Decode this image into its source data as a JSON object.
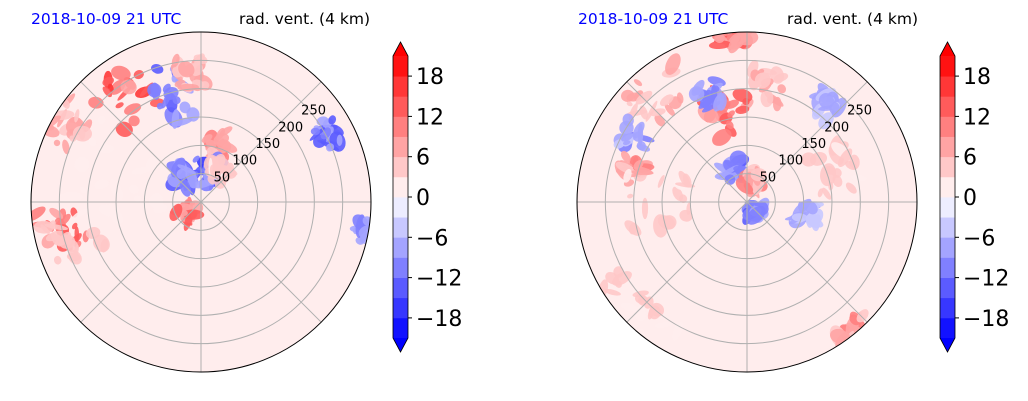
{
  "colors": {
    "title_left": "#0000ff",
    "title_right": "#000000",
    "grid": "#b0b0b0",
    "positive": "#ff0000",
    "negative": "#0000ff",
    "neutral": "#ffffff"
  },
  "chart_data": [
    {
      "type": "heatmap",
      "projection": "polar",
      "title_left": "2018-10-09 21 UTC",
      "title_right": "rad. vent. (4 km)",
      "range_rings": [
        50,
        100,
        150,
        200,
        250
      ],
      "range_ring_labels": [
        "50",
        "100",
        "150",
        "200",
        "250"
      ],
      "max_range": 300,
      "spoke_angles_deg": [
        0,
        45,
        90,
        135,
        180,
        225,
        270,
        315
      ],
      "grid": true,
      "colorbar": {
        "vmin": -21,
        "vmax": 21,
        "step": 3,
        "ticks": [
          -18,
          -12,
          -6,
          0,
          6,
          12,
          18
        ],
        "tick_labels": [
          "−18",
          "−12",
          "−6",
          "0",
          "6",
          "12",
          "18"
        ],
        "extend": "both",
        "cmap": "bwr"
      },
      "features": [
        {
          "az": -35,
          "r": 230,
          "value": 17,
          "spread_az": 12,
          "spread_r": 45
        },
        {
          "az": -15,
          "r": 200,
          "value": -14,
          "spread_az": 10,
          "spread_r": 55
        },
        {
          "az": -5,
          "r": 230,
          "value": 8,
          "spread_az": 8,
          "spread_r": 30
        },
        {
          "az": 15,
          "r": 110,
          "value": 10,
          "spread_az": 10,
          "spread_r": 25
        },
        {
          "az": 5,
          "r": 55,
          "value": -16,
          "spread_az": 30,
          "spread_r": 25
        },
        {
          "az": -40,
          "r": 55,
          "value": -15,
          "spread_az": 20,
          "spread_r": 20
        },
        {
          "az": 30,
          "r": 60,
          "value": 6,
          "spread_az": 20,
          "spread_r": 20
        },
        {
          "az": -60,
          "r": 270,
          "value": 9,
          "spread_az": 8,
          "spread_r": 30
        },
        {
          "az": 62,
          "r": 255,
          "value": -13,
          "spread_az": 6,
          "spread_r": 20
        },
        {
          "az": 100,
          "r": 290,
          "value": -10,
          "spread_az": 4,
          "spread_r": 12
        },
        {
          "az": -102,
          "r": 250,
          "value": 15,
          "spread_az": 8,
          "spread_r": 45
        },
        {
          "az": -108,
          "r": 230,
          "value": 6,
          "spread_az": 10,
          "spread_r": 60
        },
        {
          "az": 235,
          "r": 30,
          "value": 14,
          "spread_az": 30,
          "spread_r": 18
        },
        {
          "az": -80,
          "r": 150,
          "value": 3,
          "spread_az": 30,
          "spread_r": 80
        }
      ]
    },
    {
      "type": "heatmap",
      "projection": "polar",
      "title_left": "2018-10-09 21 UTC",
      "title_right": "rad. vent. (4 km)",
      "range_rings": [
        50,
        100,
        150,
        200,
        250
      ],
      "range_ring_labels": [
        "50",
        "100",
        "150",
        "200",
        "250"
      ],
      "max_range": 300,
      "spoke_angles_deg": [
        0,
        45,
        90,
        135,
        180,
        225,
        270,
        315
      ],
      "grid": true,
      "colorbar": {
        "vmin": -21,
        "vmax": 21,
        "step": 3,
        "ticks": [
          -18,
          -12,
          -6,
          0,
          6,
          12,
          18
        ],
        "tick_labels": [
          "−18",
          "−12",
          "−6",
          "0",
          "6",
          "12",
          "18"
        ],
        "extend": "both",
        "cmap": "bwr"
      },
      "features": [
        {
          "az": -12,
          "r": 160,
          "value": 15,
          "spread_az": 12,
          "spread_r": 40
        },
        {
          "az": -20,
          "r": 200,
          "value": -12,
          "spread_az": 6,
          "spread_r": 20
        },
        {
          "az": -40,
          "r": 250,
          "value": 8,
          "spread_az": 12,
          "spread_r": 40
        },
        {
          "az": -60,
          "r": 230,
          "value": -10,
          "spread_az": 6,
          "spread_r": 25
        },
        {
          "az": -75,
          "r": 210,
          "value": 12,
          "spread_az": 6,
          "spread_r": 20
        },
        {
          "az": -90,
          "r": 160,
          "value": 6,
          "spread_az": 20,
          "spread_r": 60
        },
        {
          "az": -25,
          "r": 60,
          "value": -14,
          "spread_az": 18,
          "spread_r": 20
        },
        {
          "az": 20,
          "r": 40,
          "value": 12,
          "spread_az": 25,
          "spread_r": 15
        },
        {
          "az": 150,
          "r": 20,
          "value": -15,
          "spread_az": 40,
          "spread_r": 10
        },
        {
          "az": 10,
          "r": 210,
          "value": 7,
          "spread_az": 8,
          "spread_r": 30
        },
        {
          "az": 40,
          "r": 220,
          "value": -8,
          "spread_az": 6,
          "spread_r": 20
        },
        {
          "az": 100,
          "r": 110,
          "value": -8,
          "spread_az": 10,
          "spread_r": 20
        },
        {
          "az": 70,
          "r": 170,
          "value": 6,
          "spread_az": 15,
          "spread_r": 40
        },
        {
          "az": -5,
          "r": 290,
          "value": 14,
          "spread_az": 5,
          "spread_r": 12
        },
        {
          "az": -135,
          "r": 270,
          "value": 5,
          "spread_az": 20,
          "spread_r": 30
        },
        {
          "az": 140,
          "r": 290,
          "value": 12,
          "spread_az": 6,
          "spread_r": 10
        }
      ]
    }
  ]
}
